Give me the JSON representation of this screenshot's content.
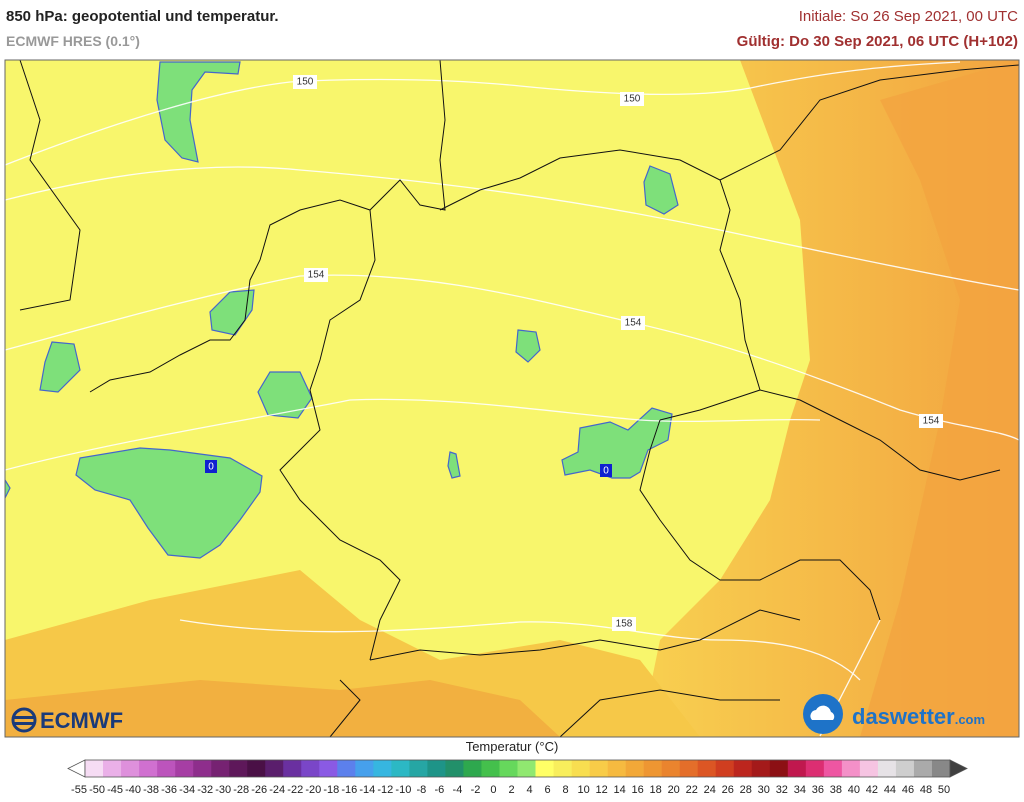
{
  "header": {
    "title": "850 hPa: geopotential und temperatur.",
    "model": "ECMWF HRES (0.1°)",
    "initial": "Initiale: So 26 Sep 2021, 00 UTC",
    "valid": "Gültig: Do 30 Sep 2021, 06 UTC (H+102)"
  },
  "map": {
    "contour_labels": [
      150,
      150,
      154,
      154,
      154,
      158
    ],
    "isotherm_labels": [
      0,
      0
    ]
  },
  "logos": {
    "ecmwf": "ECMWF",
    "daswetter": "daswetter",
    "domain": ".com"
  },
  "legend": {
    "title": "Temperatur (°C)",
    "ticks": [
      -55,
      -50,
      -45,
      -40,
      -38,
      -36,
      -34,
      -32,
      -30,
      -28,
      -26,
      -24,
      -22,
      -20,
      -18,
      -16,
      -14,
      -12,
      -10,
      -8,
      -6,
      -4,
      -2,
      0,
      2,
      4,
      6,
      8,
      10,
      12,
      14,
      16,
      18,
      20,
      22,
      24,
      26,
      28,
      30,
      32,
      34,
      36,
      38,
      40,
      42,
      44,
      46,
      48,
      50
    ],
    "colors": [
      "#f6dcf4",
      "#eab0e8",
      "#de90dc",
      "#d070d0",
      "#bc54bc",
      "#a63ea4",
      "#8e2e8c",
      "#762272",
      "#5e185a",
      "#4a1046",
      "#5a1e6c",
      "#6a30a0",
      "#7a46c8",
      "#8a5ae4",
      "#5c80ec",
      "#46a0ec",
      "#36b6e0",
      "#2cb8c4",
      "#26a6a4",
      "#1e9488",
      "#22906a",
      "#2ea84e",
      "#44c04c",
      "#66d85c",
      "#90e870",
      "#ffff66",
      "#f8ee5c",
      "#f8de50",
      "#f8cc48",
      "#f6ba40",
      "#f2a838",
      "#ee9632",
      "#ea842e",
      "#e46e2a",
      "#dc5624",
      "#d03e20",
      "#bc261e",
      "#a41a1a",
      "#8c1014",
      "#c0184e",
      "#dc2e72",
      "#ee56a2",
      "#f490c8",
      "#f6c4e2",
      "#e6e2e6",
      "#cecece",
      "#aaaaaa",
      "#888888"
    ]
  }
}
